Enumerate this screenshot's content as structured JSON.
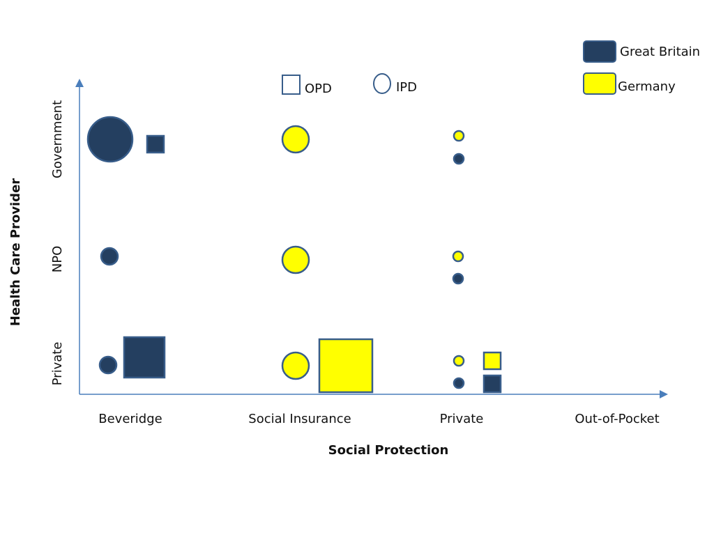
{
  "chart_data": {
    "type": "scatter",
    "xlabel": "Social Protection",
    "ylabel": "Health Care Provider",
    "x_categories": [
      "Beveridge",
      "Social Insurance",
      "Private",
      "Out-of-Pocket"
    ],
    "y_categories": [
      "Government",
      "NPO",
      "Private"
    ],
    "legend": {
      "countries": [
        {
          "name": "Great Britain",
          "color": "#243f60"
        },
        {
          "name": "Germany",
          "color": "#ffff00"
        }
      ],
      "shapes": [
        {
          "name": "OPD",
          "shape": "square"
        },
        {
          "name": "IPD",
          "shape": "circle"
        }
      ]
    },
    "marks": [
      {
        "x": "Beveridge",
        "y": "Government",
        "country": "Great Britain",
        "type": "IPD",
        "size": "large"
      },
      {
        "x": "Beveridge",
        "y": "Government",
        "country": "Great Britain",
        "type": "OPD",
        "size": "small"
      },
      {
        "x": "Beveridge",
        "y": "NPO",
        "country": "Great Britain",
        "type": "IPD",
        "size": "small"
      },
      {
        "x": "Beveridge",
        "y": "Private",
        "country": "Great Britain",
        "type": "IPD",
        "size": "small"
      },
      {
        "x": "Beveridge",
        "y": "Private",
        "country": "Great Britain",
        "type": "OPD",
        "size": "large"
      },
      {
        "x": "Social Insurance",
        "y": "Government",
        "country": "Germany",
        "type": "IPD",
        "size": "medium"
      },
      {
        "x": "Social Insurance",
        "y": "NPO",
        "country": "Germany",
        "type": "IPD",
        "size": "medium"
      },
      {
        "x": "Social Insurance",
        "y": "Private",
        "country": "Germany",
        "type": "IPD",
        "size": "medium"
      },
      {
        "x": "Social Insurance",
        "y": "Private",
        "country": "Germany",
        "type": "OPD",
        "size": "large"
      },
      {
        "x": "Private",
        "y": "Government",
        "country": "Germany",
        "type": "IPD",
        "size": "tiny"
      },
      {
        "x": "Private",
        "y": "Government",
        "country": "Great Britain",
        "type": "IPD",
        "size": "tiny"
      },
      {
        "x": "Private",
        "y": "NPO",
        "country": "Germany",
        "type": "IPD",
        "size": "tiny"
      },
      {
        "x": "Private",
        "y": "NPO",
        "country": "Great Britain",
        "type": "IPD",
        "size": "tiny"
      },
      {
        "x": "Private",
        "y": "Private",
        "country": "Germany",
        "type": "IPD",
        "size": "tiny"
      },
      {
        "x": "Private",
        "y": "Private",
        "country": "Great Britain",
        "type": "IPD",
        "size": "tiny"
      },
      {
        "x": "Private",
        "y": "Private",
        "country": "Germany",
        "type": "OPD",
        "size": "small"
      },
      {
        "x": "Private",
        "y": "Private",
        "country": "Great Britain",
        "type": "OPD",
        "size": "small"
      }
    ]
  }
}
